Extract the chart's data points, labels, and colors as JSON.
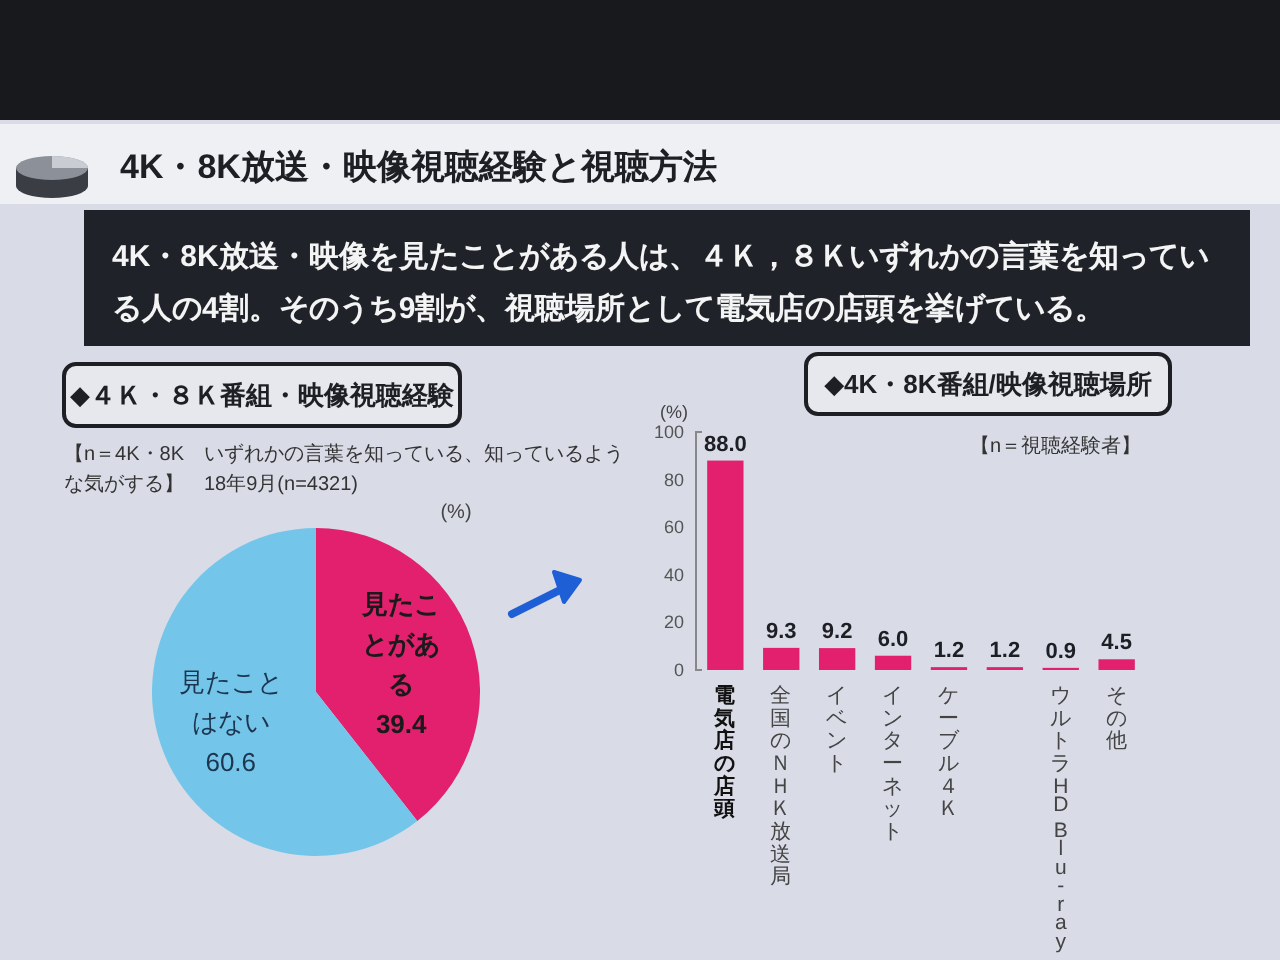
{
  "chart_data": [
    {
      "type": "other",
      "title": "4K・8K放送・映像視聴経験と視聴方法",
      "subtitle": "4K・8K放送・映像を見たことがある人は、４Ｋ，８Ｋいずれかの言葉を知っている人の4割。そのうち9割が、視聴場所として電気店の店頭を挙げている。"
    },
    {
      "type": "pie",
      "title": "◆４Ｋ・８Ｋ番組・映像視聴経験",
      "subtitle": "【n＝4K・8K　いずれかの言葉を知っている、知っているような気がする】　18年9月(n=4321)",
      "annotations": [
        "(%)"
      ],
      "categories": [
        "見たことがある",
        "見たことはない"
      ],
      "values": [
        39.4,
        60.6
      ],
      "colors": [
        "#e2206e",
        "#73c6e9"
      ],
      "data_labels": true
    },
    {
      "type": "bar",
      "title": "◆4K・8K番組/映像視聴場所",
      "ylabel": "(%)",
      "annotations": [
        "【n＝視聴経験者】"
      ],
      "categories": [
        "電気店の店頭",
        "全国のＮＨＫ放送局",
        "イベント",
        "インターネット",
        "ケーブル４Ｋ",
        null,
        "ウルトラHD Blu-ray",
        "その他"
      ],
      "values": [
        88.0,
        9.3,
        9.2,
        6.0,
        1.2,
        1.2,
        0.9,
        4.5
      ],
      "value_labels": [
        "88.0",
        "9.3",
        "9.2",
        "6.0",
        "1.2",
        "1.2",
        "0.9",
        "4.5"
      ],
      "color": "#e2206e",
      "ylim": [
        0,
        100
      ],
      "yticks": [
        0,
        20,
        40,
        60,
        80,
        100
      ]
    }
  ]
}
